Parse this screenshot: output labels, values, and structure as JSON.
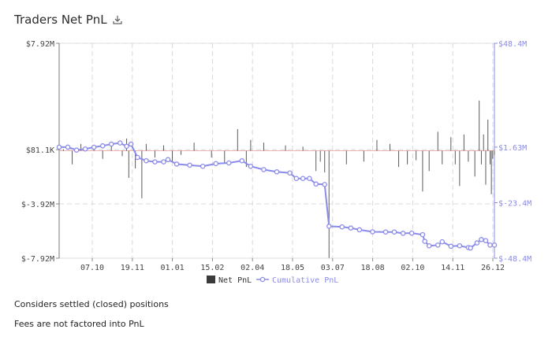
{
  "title": "Traders Net PnL",
  "icons": {
    "download": "download-icon"
  },
  "notes": [
    "Considers settled (closed) positions",
    "Fees are not factored into PnL"
  ],
  "colors": {
    "bar": "#5a5a5a",
    "cumulative": "#8b8bea",
    "axis_right": "#8b8bea",
    "grid": "#d8d8d8",
    "zero": "#e89a9a"
  },
  "chart_data": {
    "type": "bar+line",
    "x_tick_labels": [
      "07.10",
      "19.11",
      "01.01",
      "15.02",
      "02.04",
      "18.05",
      "03.07",
      "18.08",
      "02.10",
      "14.11",
      "26.12"
    ],
    "left_axis": {
      "label": "Net PnL",
      "ticks": [
        "$7.92M",
        "$81.1K",
        "$-3.92M",
        "$-7.92M"
      ],
      "tick_values": [
        7.92,
        0.0811,
        -3.92,
        -7.92
      ],
      "range": [
        -7.92,
        7.92
      ]
    },
    "right_axis": {
      "label": "Cumulative PnL",
      "ticks": [
        "$48.4M",
        "$1.63M",
        "$-23.4M",
        "$-48.4M"
      ],
      "tick_values": [
        48.4,
        1.63,
        -23.4,
        -48.4
      ],
      "range": [
        -48.4,
        48.4
      ]
    },
    "legend": [
      "Net PnL",
      "Cumulative PnL"
    ],
    "legend_position": "bottom",
    "grid": true,
    "series": [
      {
        "name": "Cumulative PnL",
        "unit": "$M",
        "points": [
          [
            0.0,
            1.63
          ],
          [
            0.02,
            1.63
          ],
          [
            0.04,
            0.3
          ],
          [
            0.06,
            0.8
          ],
          [
            0.08,
            1.6
          ],
          [
            0.1,
            2.2
          ],
          [
            0.12,
            3.0
          ],
          [
            0.14,
            3.5
          ],
          [
            0.155,
            2.0
          ],
          [
            0.165,
            3.0
          ],
          [
            0.18,
            -3.0
          ],
          [
            0.2,
            -4.5
          ],
          [
            0.22,
            -5.0
          ],
          [
            0.24,
            -5.0
          ],
          [
            0.25,
            -4.0
          ],
          [
            0.27,
            -6.0
          ],
          [
            0.3,
            -6.5
          ],
          [
            0.33,
            -7.0
          ],
          [
            0.36,
            -5.8
          ],
          [
            0.39,
            -5.5
          ],
          [
            0.42,
            -4.5
          ],
          [
            0.44,
            -7.0
          ],
          [
            0.47,
            -8.5
          ],
          [
            0.5,
            -9.5
          ],
          [
            0.53,
            -10.0
          ],
          [
            0.545,
            -12.5
          ],
          [
            0.56,
            -12.5
          ],
          [
            0.575,
            -12.5
          ],
          [
            0.59,
            -15.0
          ],
          [
            0.61,
            -15.2
          ],
          [
            0.62,
            -34.0
          ],
          [
            0.65,
            -34.3
          ],
          [
            0.67,
            -34.8
          ],
          [
            0.69,
            -35.6
          ],
          [
            0.72,
            -36.5
          ],
          [
            0.75,
            -36.6
          ],
          [
            0.77,
            -36.6
          ],
          [
            0.79,
            -37.2
          ],
          [
            0.81,
            -37.1
          ],
          [
            0.835,
            -37.8
          ],
          [
            0.84,
            -40.8
          ],
          [
            0.85,
            -42.8
          ],
          [
            0.87,
            -42.5
          ],
          [
            0.88,
            -41.0
          ],
          [
            0.9,
            -43.0
          ],
          [
            0.92,
            -42.8
          ],
          [
            0.94,
            -43.6
          ],
          [
            0.945,
            -43.8
          ],
          [
            0.96,
            -41.5
          ],
          [
            0.97,
            -40.0
          ],
          [
            0.98,
            -40.5
          ],
          [
            0.99,
            -42.5
          ],
          [
            1.0,
            -42.5
          ]
        ]
      },
      {
        "name": "Net PnL",
        "unit": "$M",
        "points": [
          [
            0.01,
            0.1
          ],
          [
            0.03,
            -1.0
          ],
          [
            0.05,
            0.5
          ],
          [
            0.08,
            0.3
          ],
          [
            0.1,
            -0.6
          ],
          [
            0.12,
            0.4
          ],
          [
            0.145,
            -0.4
          ],
          [
            0.155,
            0.9
          ],
          [
            0.16,
            -2.0
          ],
          [
            0.175,
            -1.3
          ],
          [
            0.19,
            -3.5
          ],
          [
            0.2,
            0.5
          ],
          [
            0.22,
            -0.5
          ],
          [
            0.24,
            0.4
          ],
          [
            0.26,
            -0.8
          ],
          [
            0.28,
            -0.3
          ],
          [
            0.31,
            0.6
          ],
          [
            0.35,
            -0.5
          ],
          [
            0.38,
            -0.9
          ],
          [
            0.41,
            1.6
          ],
          [
            0.43,
            -1.2
          ],
          [
            0.44,
            0.8
          ],
          [
            0.47,
            0.6
          ],
          [
            0.52,
            0.4
          ],
          [
            0.56,
            0.3
          ],
          [
            0.59,
            -1.5
          ],
          [
            0.6,
            -0.8
          ],
          [
            0.61,
            -1.6
          ],
          [
            0.62,
            -7.9
          ],
          [
            0.66,
            -1.0
          ],
          [
            0.7,
            -0.8
          ],
          [
            0.73,
            0.8
          ],
          [
            0.76,
            0.5
          ],
          [
            0.78,
            -1.2
          ],
          [
            0.8,
            -1.0
          ],
          [
            0.82,
            -0.7
          ],
          [
            0.835,
            -3.0
          ],
          [
            0.85,
            -1.5
          ],
          [
            0.87,
            1.4
          ],
          [
            0.88,
            -1.0
          ],
          [
            0.9,
            1.0
          ],
          [
            0.91,
            -1.0
          ],
          [
            0.92,
            -2.6
          ],
          [
            0.93,
            1.2
          ],
          [
            0.94,
            -0.8
          ],
          [
            0.955,
            -1.9
          ],
          [
            0.965,
            3.7
          ],
          [
            0.97,
            -1.0
          ],
          [
            0.975,
            1.2
          ],
          [
            0.98,
            -2.5
          ],
          [
            0.985,
            2.3
          ],
          [
            0.99,
            -1.0
          ],
          [
            0.993,
            -3.2
          ],
          [
            0.996,
            -0.6
          ],
          [
            1.0,
            -0.3
          ]
        ]
      }
    ]
  }
}
